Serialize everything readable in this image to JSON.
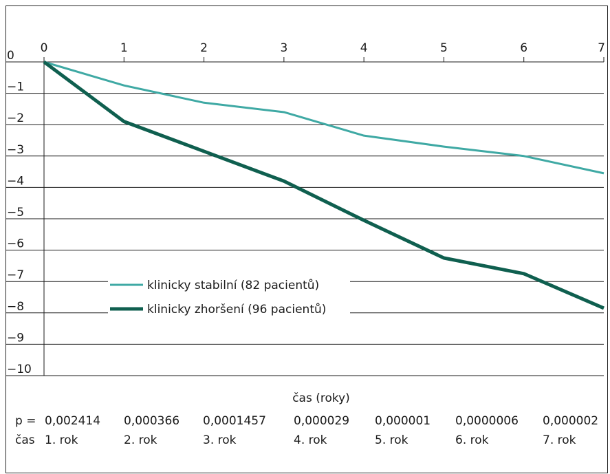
{
  "chart_data": {
    "type": "line",
    "x": [
      0,
      1,
      2,
      3,
      4,
      5,
      6,
      7
    ],
    "series": [
      {
        "name": "klinicky stabilní (82 pacientů)",
        "color": "#3fa9a4",
        "values": [
          0,
          -0.75,
          -1.3,
          -1.6,
          -2.35,
          -2.7,
          -3.0,
          -3.55
        ]
      },
      {
        "name": "klinicky zhoršení (96 pacientů)",
        "color": "#0f5f4f",
        "values": [
          0,
          -1.9,
          -2.85,
          -3.8,
          -5.05,
          -6.25,
          -6.75,
          -7.85
        ]
      }
    ],
    "x_ticks": [
      "0",
      "1",
      "2",
      "3",
      "4",
      "5",
      "6",
      "7"
    ],
    "y_ticks": [
      "0",
      "−1",
      "−2",
      "−3",
      "−4",
      "−5",
      "−6",
      "−7",
      "−8",
      "−9",
      "−10"
    ],
    "xlabel": "čas (roky)",
    "ylabel": "",
    "xlim": [
      0,
      7
    ],
    "ylim": [
      -10,
      0
    ],
    "x_axis_position": "top",
    "grid": "horizontal",
    "legend_position": "lower-left inside plot"
  },
  "stats_table": {
    "p_label": "p =",
    "p_values": [
      "0,002414",
      "0,000366",
      "0,0001457",
      "0,000029",
      "0,000001",
      "0,0000006",
      "0,000002"
    ],
    "time_label": "čas",
    "time_values": [
      "1. rok",
      "2. rok",
      "3. rok",
      "4. rok",
      "5. rok",
      "6. rok",
      "7. rok"
    ]
  }
}
